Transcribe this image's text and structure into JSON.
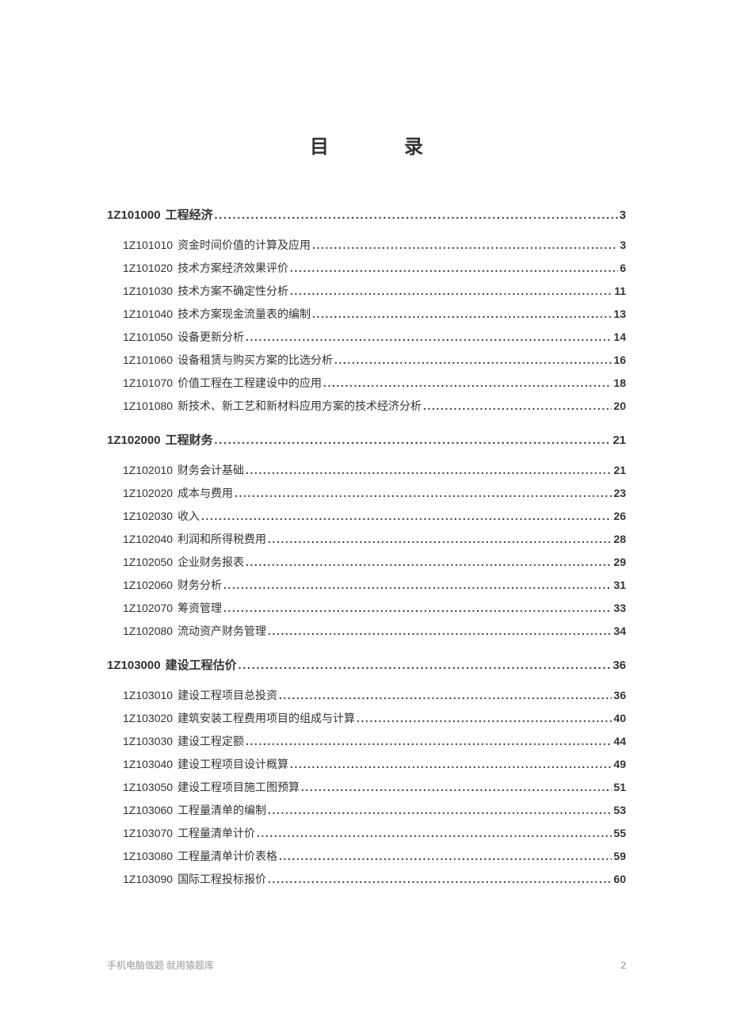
{
  "title": {
    "char1": "目",
    "char2": "录"
  },
  "sections": [
    {
      "code": "1Z101000",
      "label": "工程经济",
      "page": "3",
      "items": [
        {
          "code": "1Z101010",
          "label": "资金时间价值的计算及应用",
          "page": "3"
        },
        {
          "code": "1Z101020",
          "label": "技术方案经济效果评价 ",
          "page": "6"
        },
        {
          "code": "1Z101030",
          "label": " 技术方案不确定性分析",
          "page": "11"
        },
        {
          "code": "1Z101040",
          "label": " 技术方案现金流量表的编制",
          "page": "13"
        },
        {
          "code": "1Z101050",
          "label": " 设备更新分析",
          "page": "14"
        },
        {
          "code": "1Z101060",
          "label": "  设备租赁与购买方案的比选分析",
          "page": "16"
        },
        {
          "code": "1Z101070",
          "label": " 价值工程在工程建设中的应用 ",
          "page": "18"
        },
        {
          "code": "1Z101080",
          "label": " 新技术、新工艺和新材料应用方案的技术经济分析",
          "page": "20"
        }
      ]
    },
    {
      "code": "1Z102000",
      "label": "工程财务",
      "page": "21",
      "items": [
        {
          "code": "1Z102010",
          "label": "财务会计基础 ",
          "page": "21"
        },
        {
          "code": "1Z102020",
          "label": " 成本与费用 ",
          "page": "23"
        },
        {
          "code": "1Z102030",
          "label": "收入 ",
          "page": "26"
        },
        {
          "code": "1Z102040",
          "label": "利润和所得税费用",
          "page": "28"
        },
        {
          "code": "1Z102050",
          "label": "企业财务报表 ",
          "page": "29"
        },
        {
          "code": "1Z102060",
          "label": " 财务分析 ",
          "page": "31"
        },
        {
          "code": "1Z102070",
          "label": "筹资管理",
          "page": "33"
        },
        {
          "code": "1Z102080",
          "label": "流动资产财务管理",
          "page": "34"
        }
      ]
    },
    {
      "code": "1Z103000",
      "label": "建设工程估价 ",
      "page": "36",
      "items": [
        {
          "code": "1Z103010",
          "label": "  建设工程项目总投资 ",
          "page": "36"
        },
        {
          "code": "1Z103020",
          "label": "建筑安装工程费用项目的组成与计算 ",
          "page": "40"
        },
        {
          "code": "1Z103030",
          "label": "  建设工程定额",
          "page": "44"
        },
        {
          "code": "1Z103040",
          "label": "建设工程项目设计概算 ",
          "page": "49"
        },
        {
          "code": "1Z103050",
          "label": "建设工程项目施工图预算",
          "page": "51"
        },
        {
          "code": "1Z103060",
          "label": "工程量清单的编制",
          "page": "53"
        },
        {
          "code": "1Z103070",
          "label": "工程量清单计价",
          "page": "55"
        },
        {
          "code": "1Z103080",
          "label": "工程量清单计价表格 ",
          "page": "59"
        },
        {
          "code": "1Z103090",
          "label": "国际工程投标报价",
          "page": "60"
        }
      ]
    }
  ],
  "footer": {
    "text": "手机电脑做题 就用猿题库",
    "pagenum": "2"
  }
}
